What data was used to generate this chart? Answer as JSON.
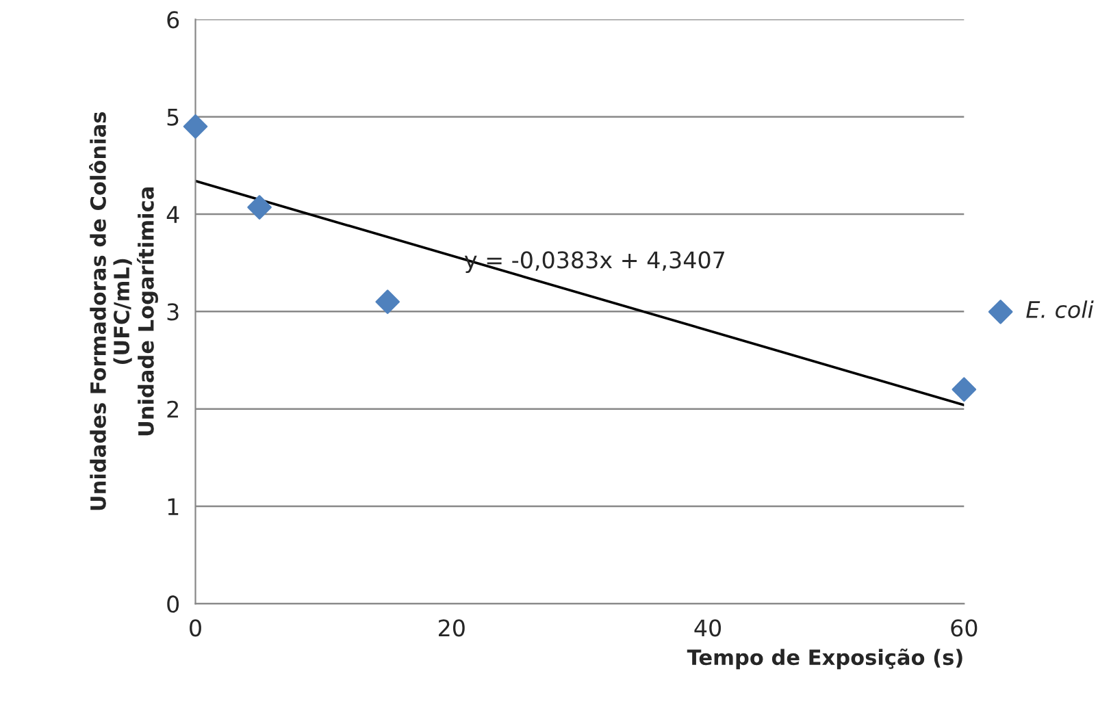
{
  "chart_data": {
    "type": "scatter",
    "xlabel": "Tempo de Exposição (s)",
    "ylabel": "Unidades Formadoras de Colônias\n(UFC/mL)\nUnidade Logarítimica",
    "series": [
      {
        "name": "E. coli",
        "marker": "diamond",
        "color": "#4f81bd",
        "x": [
          0,
          5,
          15,
          60
        ],
        "values": [
          4.9,
          4.07,
          3.1,
          2.2
        ]
      },
      {
        "type": "line",
        "color": "#000000",
        "x": [
          0,
          60
        ],
        "values": [
          4.34,
          2.04
        ]
      }
    ],
    "annotations": [
      "y = -0,0383x + 4,3407"
    ],
    "xlim": [
      0,
      60
    ],
    "xticks": [
      0,
      20,
      40,
      60
    ],
    "ylim": [
      0,
      6
    ],
    "yticks": [
      0,
      1,
      2,
      3,
      4,
      5,
      6
    ],
    "grid": "y",
    "legend": "right"
  }
}
